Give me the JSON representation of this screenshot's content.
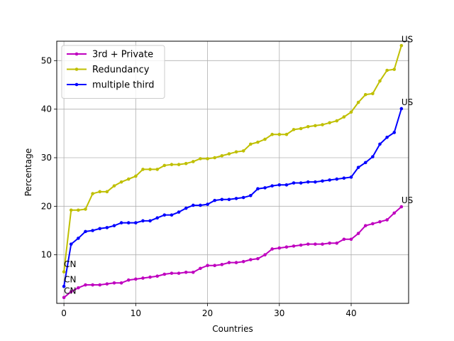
{
  "chart_data": {
    "type": "line",
    "xlabel": "Countries",
    "ylabel": "Percentage",
    "xlim": [
      -1,
      48
    ],
    "ylim": [
      0,
      54
    ],
    "xticks": [
      0,
      10,
      20,
      30,
      40
    ],
    "yticks": [
      10,
      20,
      30,
      40,
      50
    ],
    "grid": true,
    "legend_position": "top-left",
    "series": [
      {
        "name": "3rd + Private",
        "color": "#bf00bf",
        "values": [
          1.2,
          2.4,
          3.2,
          3.8,
          3.8,
          3.8,
          4.0,
          4.2,
          4.2,
          4.8,
          5.0,
          5.2,
          5.4,
          5.6,
          6.0,
          6.2,
          6.2,
          6.4,
          6.4,
          7.2,
          7.8,
          7.8,
          8.0,
          8.4,
          8.4,
          8.6,
          9.0,
          9.2,
          10.0,
          11.2,
          11.4,
          11.6,
          11.8,
          12.0,
          12.2,
          12.2,
          12.2,
          12.4,
          12.4,
          13.2,
          13.2,
          14.4,
          16.0,
          16.4,
          16.8,
          17.2,
          18.6,
          19.9
        ]
      },
      {
        "name": "Redundancy",
        "color": "#bfbf00",
        "values": [
          6.5,
          19.2,
          19.2,
          19.4,
          22.6,
          23.0,
          23.0,
          24.2,
          25.0,
          25.6,
          26.2,
          27.6,
          27.6,
          27.6,
          28.4,
          28.6,
          28.6,
          28.8,
          29.2,
          29.8,
          29.8,
          30.0,
          30.4,
          30.8,
          31.2,
          31.4,
          32.8,
          33.2,
          33.8,
          34.8,
          34.8,
          34.8,
          35.8,
          36.0,
          36.4,
          36.6,
          36.8,
          37.2,
          37.6,
          38.4,
          39.4,
          41.4,
          43.0,
          43.2,
          45.8,
          48.0,
          48.2,
          53.1
        ]
      },
      {
        "name": "multiple third",
        "color": "#0000ff",
        "values": [
          3.5,
          12.2,
          13.4,
          14.8,
          15.0,
          15.4,
          15.6,
          16.0,
          16.6,
          16.6,
          16.6,
          17.0,
          17.0,
          17.6,
          18.2,
          18.2,
          18.8,
          19.6,
          20.2,
          20.2,
          20.4,
          21.2,
          21.4,
          21.4,
          21.6,
          21.8,
          22.2,
          23.6,
          23.8,
          24.2,
          24.4,
          24.4,
          24.8,
          24.8,
          25.0,
          25.0,
          25.2,
          25.4,
          25.6,
          25.8,
          26.0,
          28.0,
          29.0,
          30.2,
          32.8,
          34.2,
          35.2,
          40.1
        ]
      }
    ],
    "annotations": [
      {
        "text": "CN",
        "x": 0,
        "y": 7.5
      },
      {
        "text": "CN",
        "x": 0,
        "y": 4.3
      },
      {
        "text": "CN",
        "x": 0,
        "y": 2.0
      },
      {
        "text": "US",
        "x": 47,
        "y": 53.8
      },
      {
        "text": "US",
        "x": 47,
        "y": 40.8
      },
      {
        "text": "US",
        "x": 47,
        "y": 20.6
      }
    ]
  }
}
